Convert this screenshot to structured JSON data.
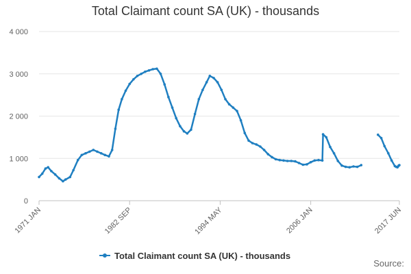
{
  "chart_data": {
    "type": "line",
    "title": "Total Claimant count SA (UK) - thousands",
    "xlabel": "",
    "ylabel": "",
    "ylim": [
      0,
      4000
    ],
    "yticks": [
      0,
      1000,
      2000,
      3000,
      4000
    ],
    "ytick_labels": [
      "0",
      "1 000",
      "2 000",
      "3 000",
      "4 000"
    ],
    "x_range": [
      "1971-01",
      "2017-06"
    ],
    "xticks": [
      {
        "date": "1971-01",
        "label": "1971 JAN"
      },
      {
        "date": "1982-09",
        "label": "1982 SEP"
      },
      {
        "date": "1994-05",
        "label": "1994 MAY"
      },
      {
        "date": "2006-01",
        "label": "2006 JAN"
      },
      {
        "date": "2017-06",
        "label": "2017 JUN"
      }
    ],
    "grid": true,
    "legend_position": "bottom",
    "color": "#1f7fc1",
    "series": [
      {
        "name": "Total Claimant count SA (UK) - thousands",
        "segments": [
          [
            [
              "1971-01",
              560
            ],
            [
              "1971-06",
              640
            ],
            [
              "1971-11",
              760
            ],
            [
              "1972-03",
              790
            ],
            [
              "1972-08",
              700
            ],
            [
              "1973-02",
              620
            ],
            [
              "1973-08",
              530
            ],
            [
              "1974-02",
              460
            ],
            [
              "1974-06",
              500
            ],
            [
              "1975-01",
              560
            ],
            [
              "1975-06",
              720
            ],
            [
              "1976-01",
              960
            ],
            [
              "1976-07",
              1080
            ],
            [
              "1977-01",
              1120
            ],
            [
              "1977-07",
              1160
            ],
            [
              "1978-01",
              1200
            ],
            [
              "1978-07",
              1160
            ],
            [
              "1979-01",
              1120
            ],
            [
              "1979-07",
              1080
            ],
            [
              "1980-01",
              1050
            ],
            [
              "1980-06",
              1200
            ],
            [
              "1980-11",
              1700
            ],
            [
              "1981-04",
              2150
            ],
            [
              "1981-09",
              2400
            ],
            [
              "1982-03",
              2600
            ],
            [
              "1982-09",
              2760
            ],
            [
              "1983-03",
              2870
            ],
            [
              "1983-09",
              2950
            ],
            [
              "1984-03",
              3000
            ],
            [
              "1984-09",
              3050
            ],
            [
              "1985-03",
              3080
            ],
            [
              "1985-09",
              3110
            ],
            [
              "1986-03",
              3120
            ],
            [
              "1986-09",
              3000
            ],
            [
              "1987-03",
              2750
            ],
            [
              "1987-09",
              2450
            ],
            [
              "1988-03",
              2200
            ],
            [
              "1988-09",
              1950
            ],
            [
              "1989-03",
              1760
            ],
            [
              "1989-09",
              1640
            ],
            [
              "1990-02",
              1590
            ],
            [
              "1990-08",
              1680
            ],
            [
              "1991-02",
              2050
            ],
            [
              "1991-08",
              2400
            ],
            [
              "1992-02",
              2620
            ],
            [
              "1992-08",
              2800
            ],
            [
              "1993-01",
              2950
            ],
            [
              "1993-07",
              2900
            ],
            [
              "1994-01",
              2800
            ],
            [
              "1994-07",
              2620
            ],
            [
              "1995-01",
              2400
            ],
            [
              "1995-07",
              2280
            ],
            [
              "1996-01",
              2200
            ],
            [
              "1996-07",
              2120
            ],
            [
              "1997-01",
              1900
            ],
            [
              "1997-07",
              1600
            ],
            [
              "1998-01",
              1420
            ],
            [
              "1998-07",
              1360
            ],
            [
              "1999-01",
              1330
            ],
            [
              "1999-07",
              1280
            ],
            [
              "2000-01",
              1200
            ],
            [
              "2000-07",
              1100
            ],
            [
              "2001-01",
              1030
            ],
            [
              "2001-07",
              980
            ],
            [
              "2002-01",
              960
            ],
            [
              "2002-07",
              950
            ],
            [
              "2003-01",
              940
            ],
            [
              "2003-07",
              940
            ],
            [
              "2004-01",
              930
            ],
            [
              "2004-07",
              890
            ],
            [
              "2005-01",
              850
            ],
            [
              "2005-07",
              860
            ],
            [
              "2006-01",
              910
            ],
            [
              "2006-07",
              950
            ],
            [
              "2007-01",
              960
            ],
            [
              "2007-07",
              950
            ],
            [
              "2007-08",
              1570
            ],
            [
              "2008-01",
              1500
            ],
            [
              "2008-07",
              1270
            ],
            [
              "2009-01",
              1120
            ],
            [
              "2009-07",
              940
            ],
            [
              "2010-01",
              830
            ],
            [
              "2010-07",
              800
            ],
            [
              "2011-01",
              790
            ],
            [
              "2011-07",
              810
            ],
            [
              "2012-01",
              800
            ],
            [
              "2012-07",
              840
            ]
          ],
          [
            [
              "2014-09",
              1560
            ],
            [
              "2015-02",
              1480
            ],
            [
              "2015-07",
              1290
            ],
            [
              "2016-01",
              1120
            ],
            [
              "2016-06",
              950
            ],
            [
              "2016-11",
              820
            ],
            [
              "2017-01",
              800
            ],
            [
              "2017-03",
              790
            ],
            [
              "2017-04",
              810
            ],
            [
              "2017-05",
              830
            ],
            [
              "2017-06",
              840
            ]
          ]
        ]
      }
    ]
  },
  "footer": {
    "source_label": "Source:"
  }
}
